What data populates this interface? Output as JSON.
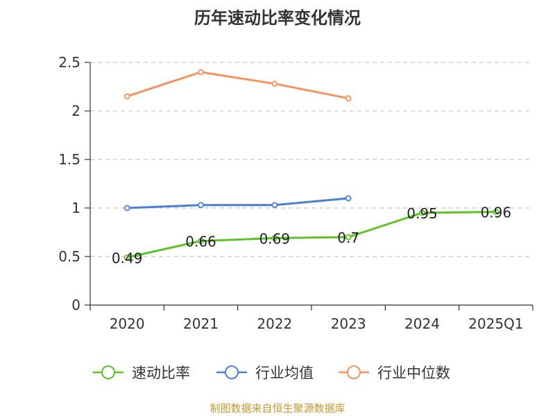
{
  "title": "历年速动比率变化情况",
  "source": "制图数据来自恒生聚源数据库",
  "chart_data": {
    "type": "line",
    "title": "历年速动比率变化情况",
    "categories": [
      "2020",
      "2021",
      "2022",
      "2023",
      "2024",
      "2025Q1"
    ],
    "ylim": [
      0,
      2.5
    ],
    "yticks": [
      "0",
      "0.5",
      "1",
      "1.5",
      "2",
      "2.5"
    ],
    "grid": true,
    "legend_position": "bottom",
    "series": [
      {
        "name": "速动比率",
        "color": "#5cc226",
        "values": [
          0.49,
          0.66,
          0.69,
          0.7,
          0.95,
          0.96
        ],
        "labels": [
          "0.49",
          "0.66",
          "0.69",
          "0.7",
          "0.95",
          "0.96"
        ]
      },
      {
        "name": "行业均值",
        "color": "#4a7fd4",
        "values": [
          1.0,
          1.03,
          1.03,
          1.1,
          null,
          null
        ]
      },
      {
        "name": "行业中位数",
        "color": "#f5925e",
        "values": [
          2.15,
          2.4,
          2.28,
          2.13,
          null,
          null
        ]
      }
    ]
  }
}
